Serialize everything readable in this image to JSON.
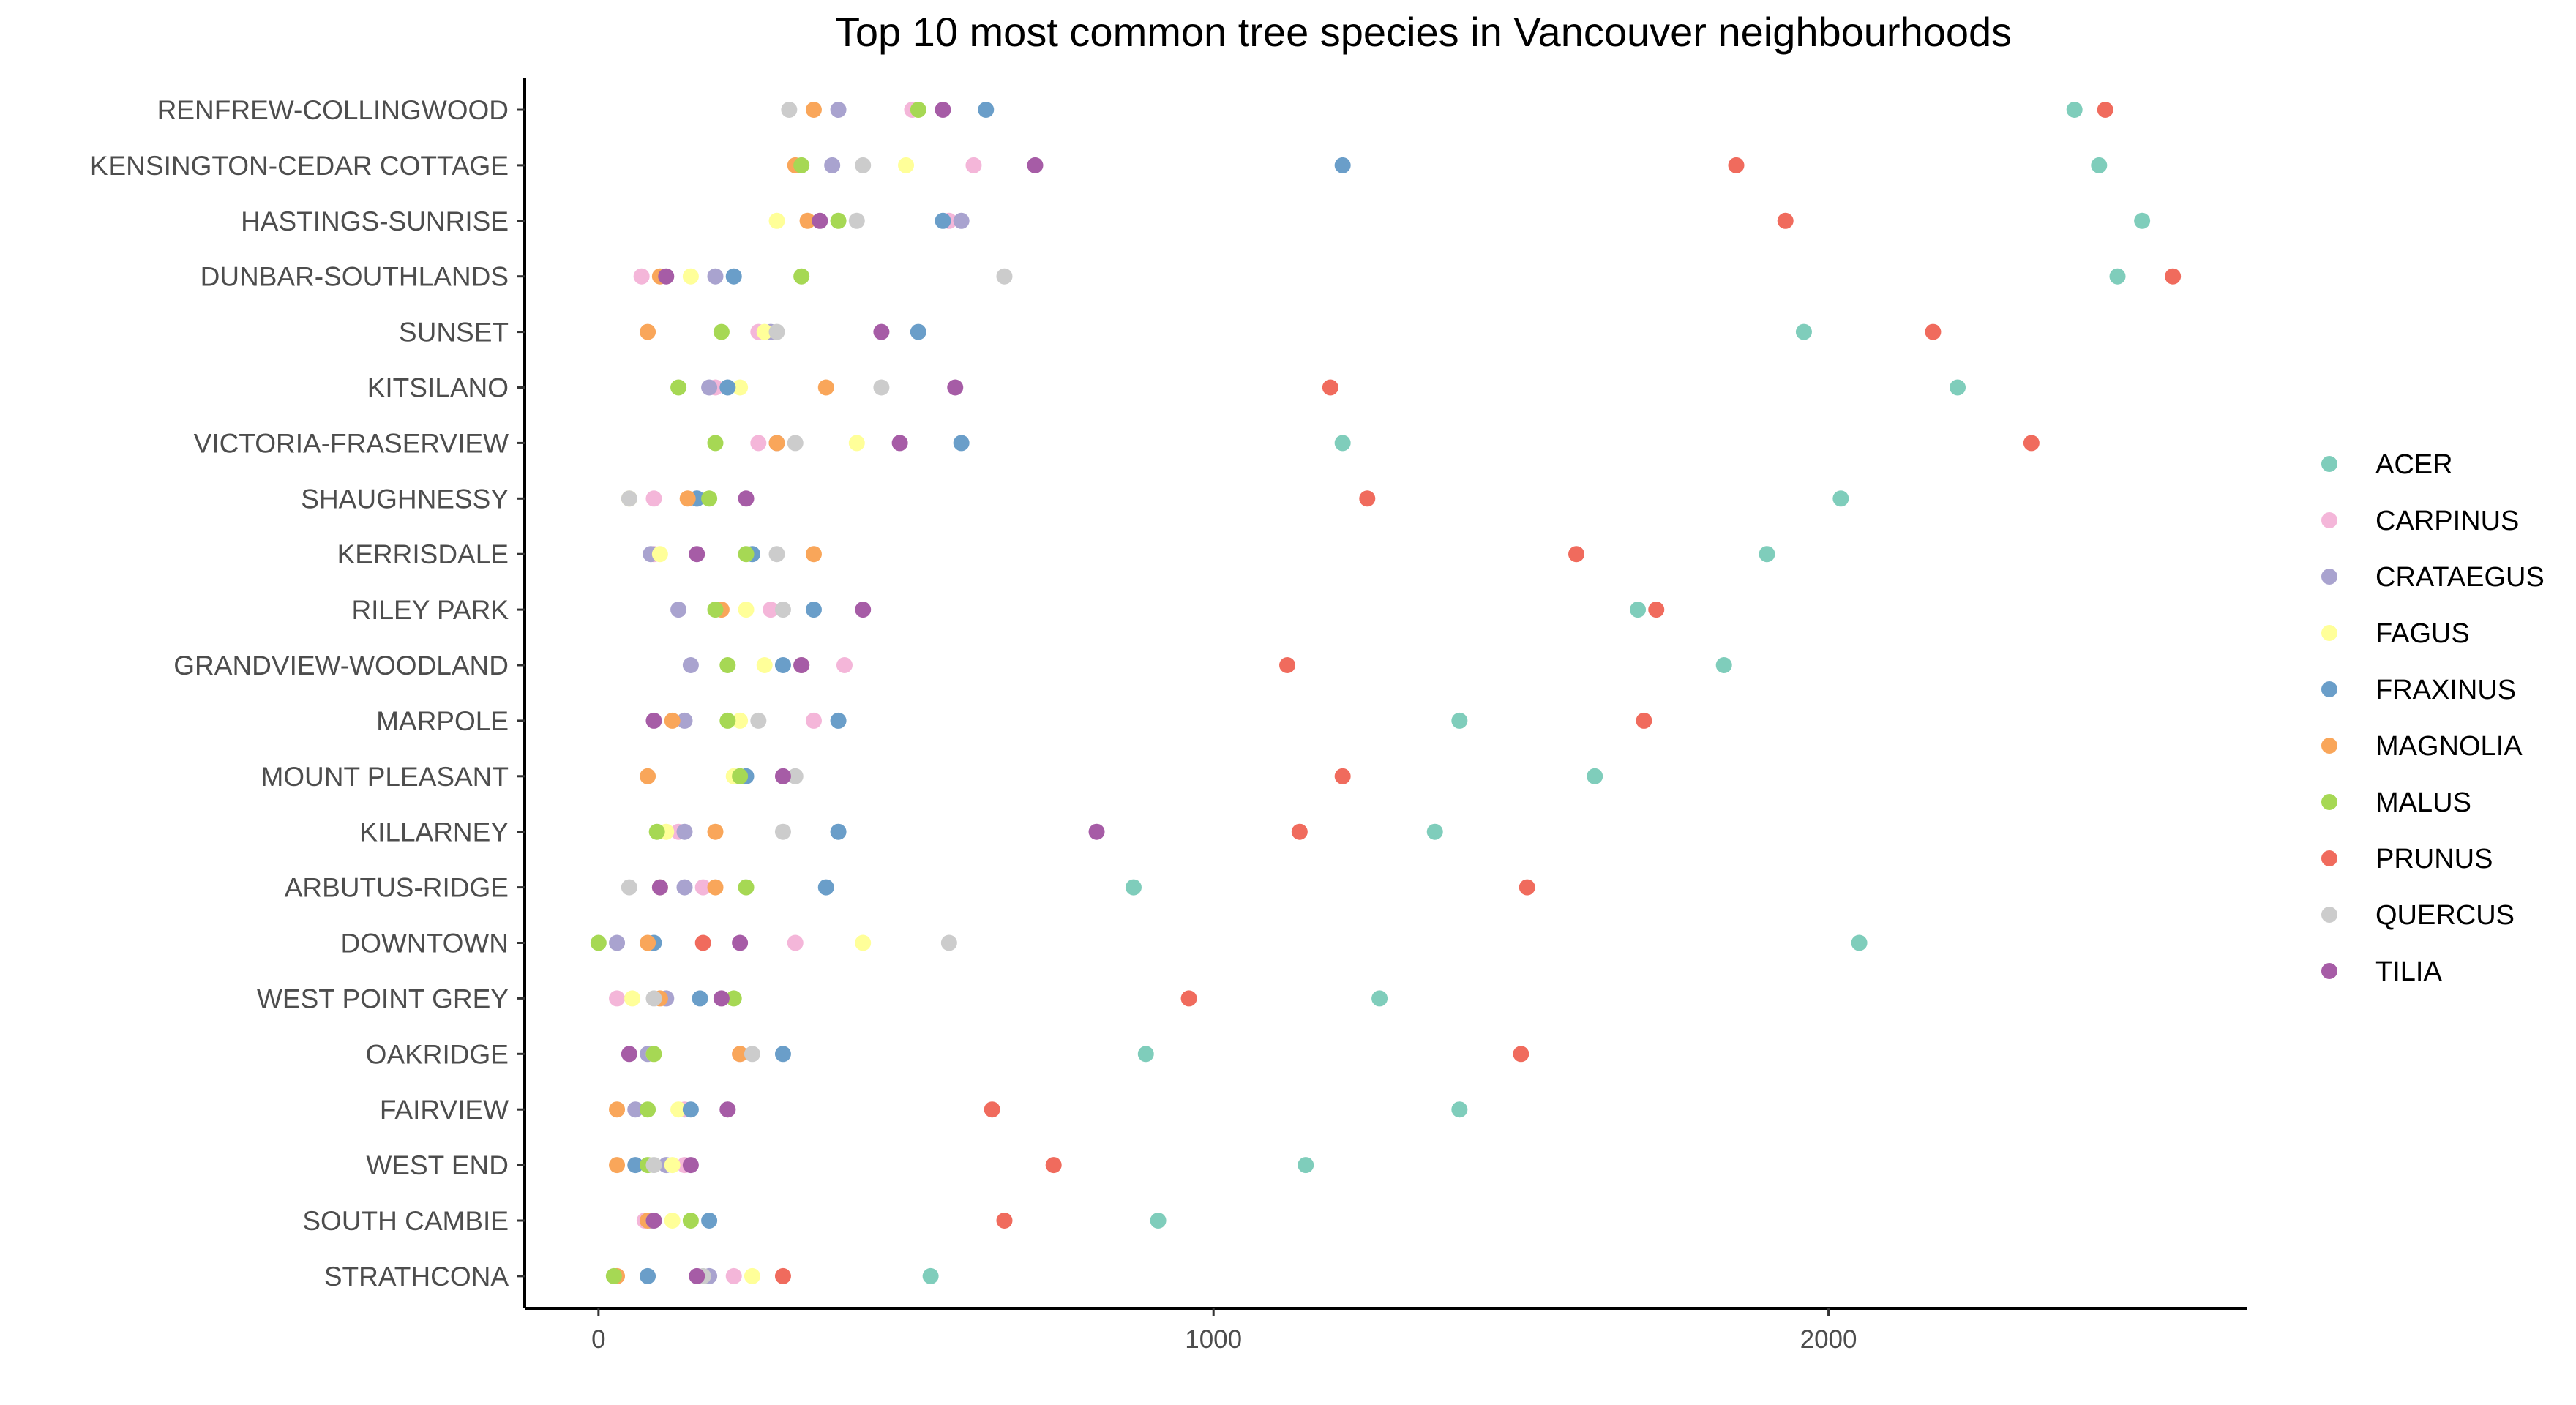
{
  "chart_data": {
    "type": "scatter",
    "title": "Top 10 most common tree species in Vancouver neighbourhoods",
    "xlabel": "",
    "ylabel": "",
    "xlim": [
      -120,
      2680
    ],
    "xticks": [
      0,
      1000,
      2000
    ],
    "grid": false,
    "legend_position": "right",
    "neighbourhoods": [
      "RENFREW-COLLINGWOOD",
      "KENSINGTON-CEDAR COTTAGE",
      "HASTINGS-SUNRISE",
      "DUNBAR-SOUTHLANDS",
      "SUNSET",
      "KITSILANO",
      "VICTORIA-FRASERVIEW",
      "SHAUGHNESSY",
      "KERRISDALE",
      "RILEY PARK",
      "GRANDVIEW-WOODLAND",
      "MARPOLE",
      "MOUNT PLEASANT",
      "KILLARNEY",
      "ARBUTUS-RIDGE",
      "DOWNTOWN",
      "WEST POINT GREY",
      "OAKRIDGE",
      "FAIRVIEW",
      "WEST END",
      "SOUTH CAMBIE",
      "STRATHCONA"
    ],
    "series": [
      {
        "name": "ACER",
        "color": "#7fcdbb",
        "values": [
          2400,
          2440,
          2510,
          2470,
          1960,
          2210,
          1210,
          2020,
          1900,
          1690,
          1830,
          1400,
          1620,
          1360,
          870,
          2050,
          1270,
          890,
          1400,
          1150,
          910,
          540
        ]
      },
      {
        "name": "CARPINUS",
        "color": "#f4b6d9",
        "values": [
          510,
          610,
          570,
          70,
          260,
          190,
          260,
          90,
          90,
          280,
          400,
          350,
          230,
          130,
          170,
          320,
          30,
          230,
          140,
          140,
          75,
          220
        ]
      },
      {
        "name": "CRATAEGUS",
        "color": "#a9a3cf",
        "values": [
          390,
          380,
          590,
          190,
          280,
          180,
          290,
          160,
          85,
          130,
          150,
          140,
          230,
          140,
          140,
          30,
          110,
          80,
          60,
          110,
          85,
          180
        ]
      },
      {
        "name": "FAGUS",
        "color": "#ffff99",
        "values": [
          520,
          500,
          290,
          150,
          270,
          230,
          420,
          50,
          100,
          240,
          270,
          230,
          220,
          110,
          100,
          430,
          55,
          90,
          130,
          120,
          120,
          250
        ]
      },
      {
        "name": "FRAXINUS",
        "color": "#6a9ec9",
        "values": [
          630,
          1210,
          560,
          220,
          520,
          210,
          590,
          160,
          250,
          350,
          300,
          390,
          240,
          390,
          370,
          90,
          165,
          300,
          150,
          60,
          180,
          80
        ]
      },
      {
        "name": "MAGNOLIA",
        "color": "#f9a65a",
        "values": [
          350,
          320,
          340,
          100,
          80,
          370,
          290,
          145,
          350,
          200,
          330,
          120,
          80,
          190,
          190,
          80,
          100,
          230,
          30,
          30,
          80,
          30
        ]
      },
      {
        "name": "MALUS",
        "color": "#a6d854",
        "values": [
          520,
          330,
          390,
          330,
          200,
          130,
          190,
          180,
          240,
          190,
          210,
          210,
          230,
          95,
          240,
          0,
          220,
          90,
          80,
          80,
          150,
          25
        ]
      },
      {
        "name": "PRUNUS",
        "color": "#f06b5d",
        "values": [
          2450,
          1850,
          1930,
          2560,
          2170,
          1190,
          2330,
          1250,
          1590,
          1720,
          1120,
          1700,
          1210,
          1140,
          1510,
          170,
          960,
          1500,
          640,
          740,
          660,
          300
        ]
      },
      {
        "name": "QUERCUS",
        "color": "#cccccc",
        "values": [
          310,
          430,
          420,
          660,
          290,
          460,
          320,
          50,
          290,
          300,
          330,
          260,
          320,
          300,
          50,
          570,
          90,
          250,
          210,
          90,
          90,
          170
        ]
      },
      {
        "name": "TILIA",
        "color": "#a65ca6",
        "values": [
          560,
          710,
          360,
          110,
          460,
          580,
          490,
          240,
          160,
          430,
          330,
          90,
          300,
          810,
          100,
          230,
          200,
          50,
          210,
          150,
          90,
          160
        ]
      }
    ]
  }
}
